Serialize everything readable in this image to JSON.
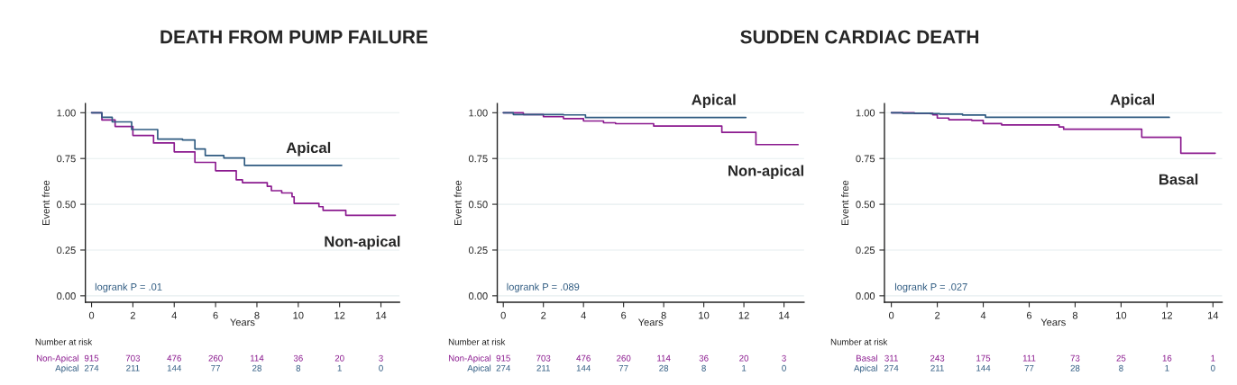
{
  "chart_data": [
    {
      "type": "step",
      "title": "DEATH FROM PUMP FAILURE",
      "xlabel": "Years",
      "ylabel": "Event free",
      "xlim": [
        -0.3,
        14.9
      ],
      "ylim": [
        -0.035,
        1.05
      ],
      "xticks": [
        0,
        2,
        4,
        6,
        8,
        10,
        12,
        14
      ],
      "yticks": [
        {
          "value": 0,
          "label": "0.00"
        },
        {
          "value": 0.25,
          "label": "0.25"
        },
        {
          "value": 0.5,
          "label": "0.50"
        },
        {
          "value": 0.75,
          "label": "0.75"
        },
        {
          "value": 1,
          "label": "1.00"
        }
      ],
      "grid": "y",
      "series": [
        {
          "name": "Non-apical",
          "color": "#8b1a8f",
          "x": [
            0,
            0.5,
            1.14,
            2,
            3,
            4,
            5,
            6,
            7,
            7.3,
            8.5,
            8.7,
            9.2,
            9.7,
            9.8,
            11,
            11.2,
            12.3,
            14.7
          ],
          "values": [
            1.0,
            0.96,
            0.925,
            0.876,
            0.835,
            0.786,
            0.729,
            0.683,
            0.634,
            0.618,
            0.598,
            0.574,
            0.562,
            0.541,
            0.505,
            0.487,
            0.467,
            0.44,
            0.44
          ]
        },
        {
          "name": "Apical",
          "color": "#2e5a80",
          "x": [
            0,
            0.5,
            1,
            1.94,
            3.2,
            4.4,
            5,
            5.5,
            6.4,
            7.4,
            12.1
          ],
          "values": [
            1.0,
            0.975,
            0.95,
            0.908,
            0.856,
            0.851,
            0.802,
            0.766,
            0.753,
            0.712,
            0.712
          ]
        }
      ],
      "annotations": [
        "logrank P = .01",
        "Number at risk",
        "Non-Apical",
        "915",
        "703",
        "476",
        "260",
        "114",
        "36",
        "20",
        "3",
        "Apical",
        "274",
        "211",
        "144",
        "77",
        "28",
        "8",
        "1",
        "0"
      ]
    },
    {
      "type": "step",
      "title": "SUDDEN CARDIAC DEATH",
      "xlabel": "Years",
      "ylabel": "Event free",
      "xlim": [
        -0.3,
        15.0
      ],
      "ylim": [
        -0.035,
        1.05
      ],
      "xticks": [
        0,
        2,
        4,
        6,
        8,
        10,
        12,
        14
      ],
      "yticks": [
        {
          "value": 0,
          "label": "0.00"
        },
        {
          "value": 0.25,
          "label": "0.25"
        },
        {
          "value": 0.5,
          "label": "0.50"
        },
        {
          "value": 0.75,
          "label": "0.75"
        },
        {
          "value": 1,
          "label": "1.00"
        }
      ],
      "grid": "y",
      "series": [
        {
          "name": "Non-apical",
          "color": "#8b1a8f",
          "x": [
            0,
            1,
            2,
            3,
            4,
            5,
            5.6,
            7.5,
            10.9,
            12.6,
            14.7
          ],
          "values": [
            1.0,
            0.99,
            0.978,
            0.968,
            0.955,
            0.945,
            0.94,
            0.927,
            0.893,
            0.826,
            0.826
          ]
        },
        {
          "name": "Apical",
          "color": "#2e5a80",
          "x": [
            0,
            0.5,
            3,
            4.1,
            12.1
          ],
          "values": [
            1.0,
            0.99,
            0.988,
            0.974,
            0.974
          ]
        }
      ],
      "annotations": [
        "logrank P = .089",
        "Number at risk",
        "Non-Apical",
        "915",
        "703",
        "476",
        "260",
        "114",
        "36",
        "20",
        "3",
        "Apical",
        "274",
        "211",
        "144",
        "77",
        "28",
        "8",
        "1",
        "0"
      ]
    },
    {
      "type": "step",
      "xlabel": "Years",
      "ylabel": "Event free",
      "xlim": [
        -0.3,
        14.4
      ],
      "ylim": [
        -0.035,
        1.05
      ],
      "xticks": [
        0,
        2,
        4,
        6,
        8,
        10,
        12,
        14
      ],
      "yticks": [
        {
          "value": 0,
          "label": "0.00"
        },
        {
          "value": 0.25,
          "label": "0.25"
        },
        {
          "value": 0.5,
          "label": "0.50"
        },
        {
          "value": 0.75,
          "label": "0.75"
        },
        {
          "value": 1,
          "label": "1.00"
        }
      ],
      "grid": "y",
      "series": [
        {
          "name": "Basal",
          "color": "#8b1a8f",
          "x": [
            0,
            1,
            1.8,
            2,
            2.5,
            3.5,
            4,
            4.8,
            7.3,
            7.5,
            10.9,
            12.6,
            14.1
          ],
          "values": [
            1.0,
            0.997,
            0.989,
            0.971,
            0.962,
            0.958,
            0.941,
            0.933,
            0.922,
            0.91,
            0.866,
            0.779,
            0.779
          ]
        },
        {
          "name": "Apical",
          "color": "#2e5a80",
          "x": [
            0,
            0.5,
            1.7,
            2.1,
            3.1,
            4.1,
            12.1
          ],
          "values": [
            1.0,
            0.997,
            0.995,
            0.992,
            0.987,
            0.975,
            0.975
          ]
        }
      ],
      "annotations": [
        "logrank P = .027",
        "Number at risk",
        "Basal",
        "311",
        "243",
        "175",
        "111",
        "73",
        "25",
        "16",
        "1",
        "Apical",
        "274",
        "211",
        "144",
        "77",
        "28",
        "8",
        "1",
        "0"
      ]
    }
  ]
}
